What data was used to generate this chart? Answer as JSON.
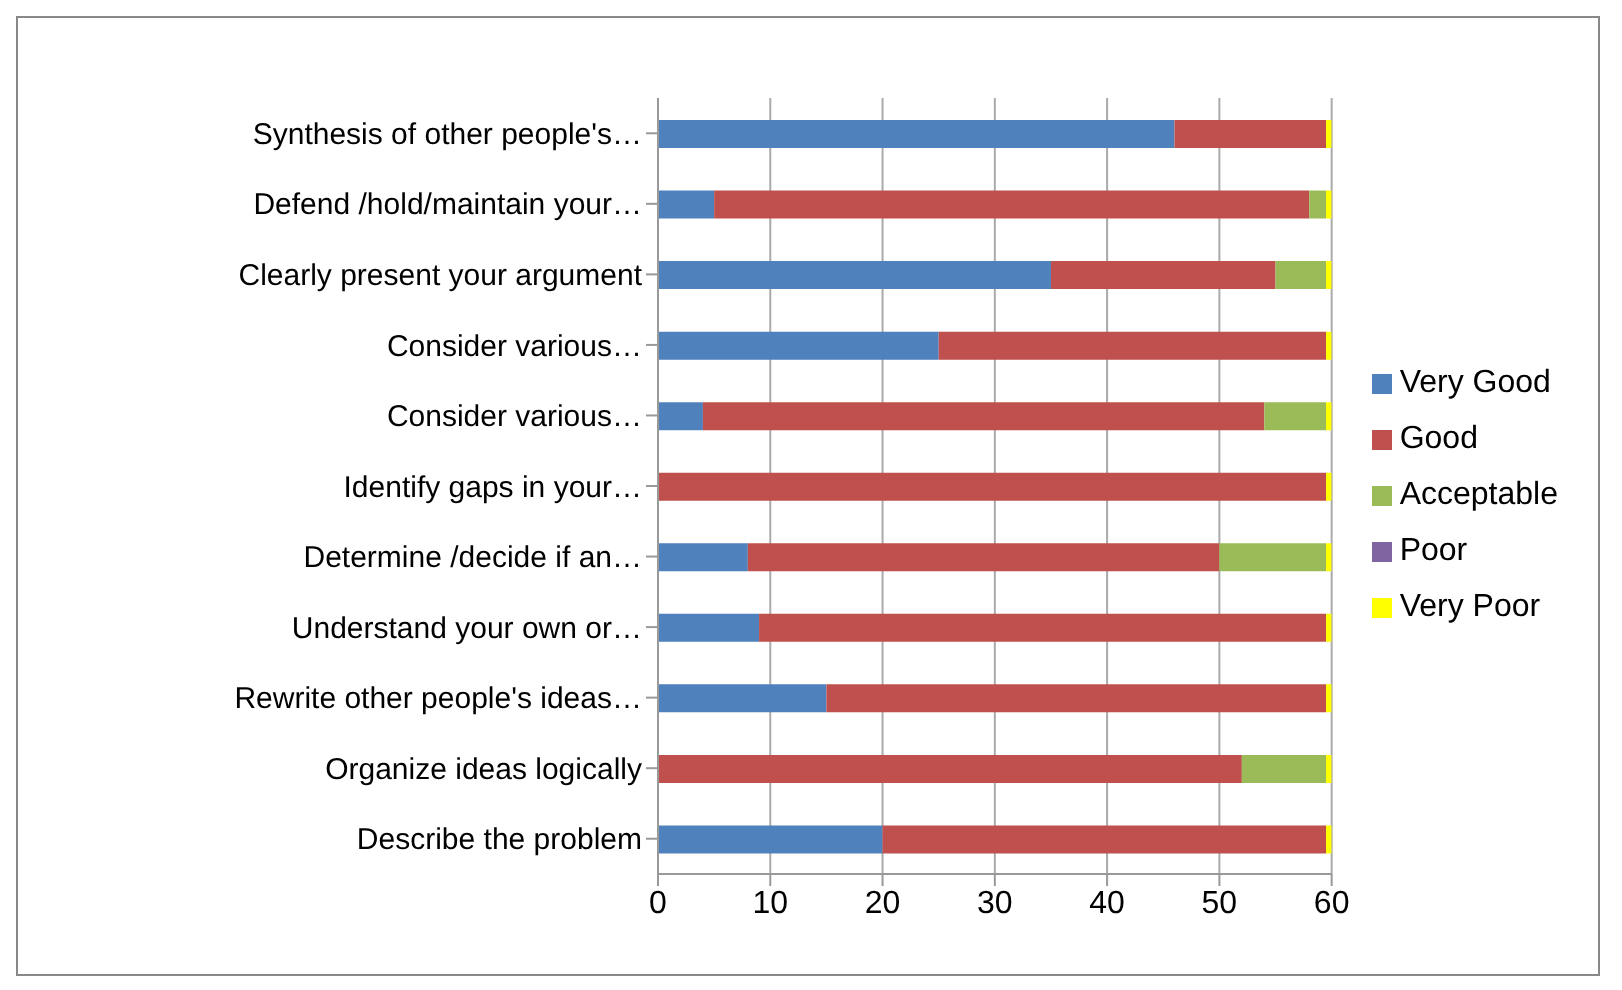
{
  "chart_data": {
    "type": "bar",
    "orientation": "horizontal",
    "stacked": true,
    "categories": [
      "Synthesis of other people's…",
      "Defend /hold/maintain your…",
      "Clearly present your argument",
      "Consider various…",
      "Consider various…",
      "Identify gaps in your…",
      "Determine /decide if an…",
      "Understand your own or…",
      "Rewrite other people's ideas…",
      "Organize ideas logically",
      "Describe the problem"
    ],
    "series": [
      {
        "name": "Very Good",
        "color": "#4f81bd",
        "values": [
          46,
          5,
          35,
          25,
          4,
          0,
          8,
          9,
          15,
          0,
          20
        ]
      },
      {
        "name": "Good",
        "color": "#c0504d",
        "values": [
          13.5,
          53,
          20,
          34.5,
          50,
          59.5,
          42,
          50.5,
          44.5,
          52,
          39.5
        ]
      },
      {
        "name": "Acceptable",
        "color": "#9bbb59",
        "values": [
          0,
          1.5,
          4.5,
          0,
          5.5,
          0,
          9.5,
          0,
          0,
          7.5,
          0
        ]
      },
      {
        "name": "Poor",
        "color": "#8064a2",
        "values": [
          0,
          0,
          0,
          0,
          0,
          0,
          0,
          0,
          0,
          0,
          0
        ]
      },
      {
        "name": "Very Poor",
        "color": "#ffff00",
        "values": [
          0.5,
          0.5,
          0.5,
          0.5,
          0.5,
          0.5,
          0.5,
          0.5,
          0.5,
          0.5,
          0.5
        ]
      }
    ],
    "xlim": [
      0,
      60
    ],
    "xticks": [
      0,
      10,
      20,
      30,
      40,
      50,
      60
    ],
    "grid": "x",
    "legend": "right"
  }
}
